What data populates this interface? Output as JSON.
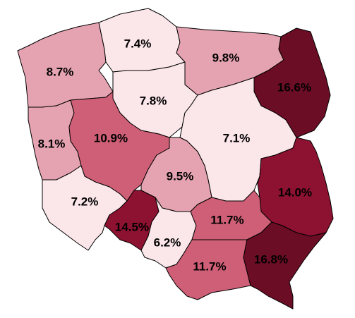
{
  "colors": {
    "lightest": "#fbe6ea",
    "light": "#e5a3b1",
    "medium": "#cf5f76",
    "dark": "#8d1130",
    "darkest": "#6b0d25",
    "border": "#000000"
  },
  "regions": [
    {
      "key": "zachodniopomorskie",
      "value": "8.7%",
      "shade": "light"
    },
    {
      "key": "pomorskie",
      "value": "7.4%",
      "shade": "lightest"
    },
    {
      "key": "warminsko-mazurskie",
      "value": "9.8%",
      "shade": "light"
    },
    {
      "key": "podlaskie",
      "value": "16.6%",
      "shade": "darkest"
    },
    {
      "key": "kujawsko-pomorskie",
      "value": "7.8%",
      "shade": "lightest"
    },
    {
      "key": "lubuskie",
      "value": "8.1%",
      "shade": "light"
    },
    {
      "key": "wielkopolskie",
      "value": "10.9%",
      "shade": "medium"
    },
    {
      "key": "mazowieckie",
      "value": "7.1%",
      "shade": "lightest"
    },
    {
      "key": "lodzkie",
      "value": "9.5%",
      "shade": "light"
    },
    {
      "key": "lubelskie",
      "value": "14.0%",
      "shade": "dark"
    },
    {
      "key": "dolnoslaskie",
      "value": "7.2%",
      "shade": "lightest"
    },
    {
      "key": "opolskie",
      "value": "14.5%",
      "shade": "dark"
    },
    {
      "key": "slaskie",
      "value": "6.2%",
      "shade": "lightest"
    },
    {
      "key": "swietokrzyskie",
      "value": "11.7%",
      "shade": "medium"
    },
    {
      "key": "malopolskie",
      "value": "11.7%",
      "shade": "medium"
    },
    {
      "key": "podkarpackie",
      "value": "16.8%",
      "shade": "darkest"
    }
  ]
}
